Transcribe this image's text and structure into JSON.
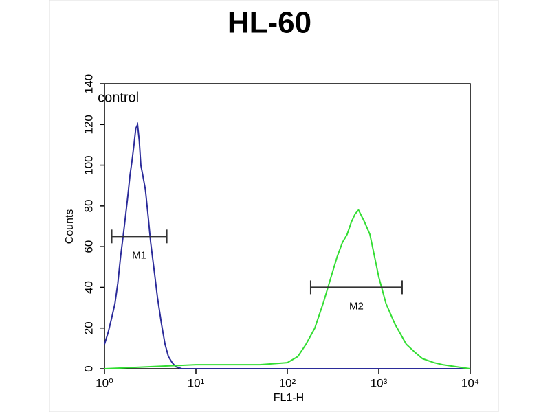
{
  "chart_data": {
    "type": "line",
    "title": "HL-60",
    "x_label": "FL1-H",
    "y_label": "Counts",
    "x_scale": "log",
    "xlim": [
      1,
      10000
    ],
    "xticks": [
      {
        "value": 1,
        "label": "10⁰"
      },
      {
        "value": 10,
        "label": "10¹"
      },
      {
        "value": 100,
        "label": "10²"
      },
      {
        "value": 1000,
        "label": "10³"
      },
      {
        "value": 10000,
        "label": "10⁴"
      }
    ],
    "ylim": [
      0,
      140
    ],
    "yticks": [
      0,
      20,
      40,
      60,
      80,
      100,
      120,
      140
    ],
    "series": [
      {
        "name": "control",
        "color": "#2b2b9a",
        "x": [
          1,
          1.1,
          1.2,
          1.3,
          1.4,
          1.5,
          1.6,
          1.7,
          1.8,
          1.9,
          2.0,
          2.1,
          2.2,
          2.3,
          2.4,
          2.5,
          2.6,
          2.8,
          3.0,
          3.2,
          3.5,
          3.8,
          4.2,
          4.6,
          5,
          5.5,
          6,
          7,
          10,
          100,
          1000,
          10000
        ],
        "values": [
          12,
          18,
          25,
          32,
          42,
          55,
          65,
          75,
          85,
          95,
          102,
          110,
          118,
          120,
          112,
          100,
          96,
          88,
          75,
          62,
          48,
          35,
          22,
          12,
          6,
          3,
          1,
          0,
          0,
          0,
          0,
          0
        ]
      },
      {
        "color": "#33dd33",
        "x": [
          1,
          10,
          50,
          100,
          130,
          160,
          200,
          250,
          300,
          350,
          400,
          450,
          500,
          550,
          600,
          700,
          800,
          900,
          1000,
          1200,
          1500,
          2000,
          2500,
          3000,
          4000,
          5000,
          7000,
          10000
        ],
        "values": [
          0,
          2,
          2,
          3,
          6,
          12,
          20,
          33,
          45,
          55,
          62,
          66,
          72,
          76,
          78,
          72,
          66,
          55,
          45,
          32,
          22,
          12,
          8,
          5,
          3,
          2,
          1,
          0
        ]
      }
    ],
    "markers": [
      {
        "label": "M1",
        "x": [
          1.2,
          4.8
        ],
        "y": 65
      },
      {
        "label": "M2",
        "x": [
          180,
          1800
        ],
        "y": 40
      }
    ]
  }
}
